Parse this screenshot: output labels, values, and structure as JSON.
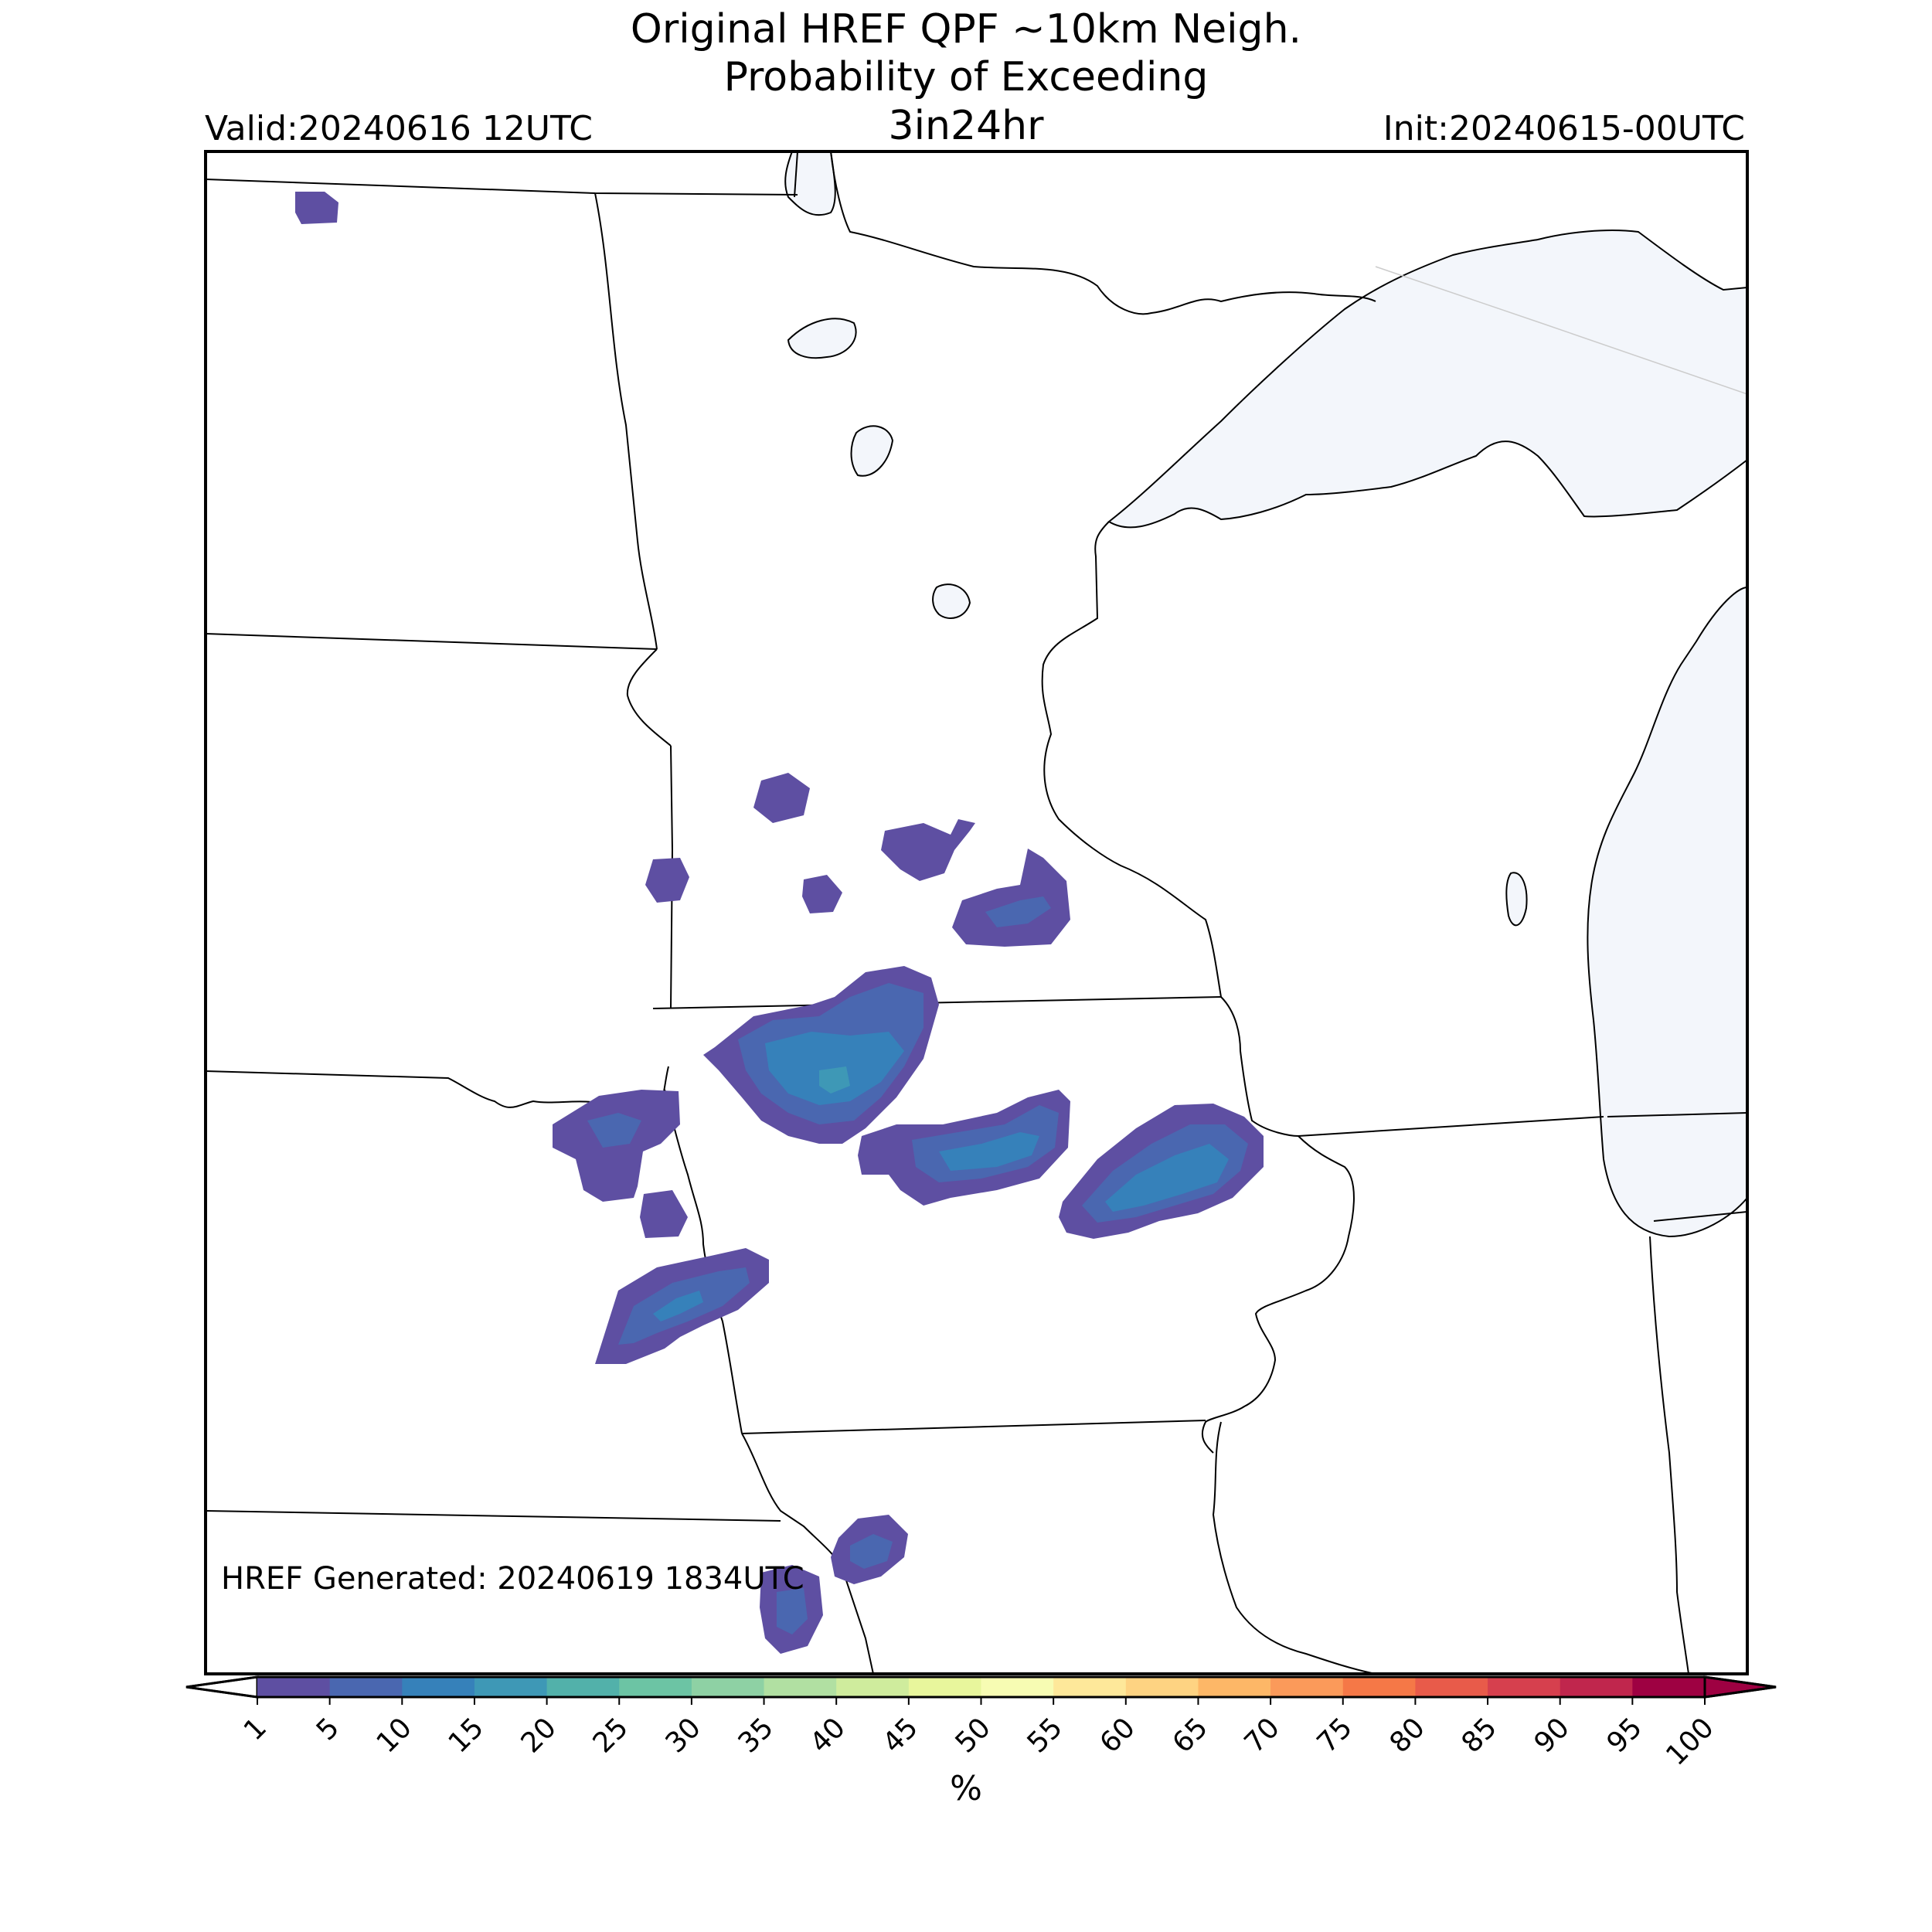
{
  "header": {
    "title_line1": "Original HREF QPF ~10km Neigh.",
    "title_line2": "Probability of Exceeding",
    "title_line3": "3in24hr",
    "valid": "Valid:20240616 12UTC",
    "init": "Init:20240615-00UTC"
  },
  "map": {
    "generated": "HREF Generated: 20240619 1834UTC",
    "lake_color": "#f3f6fb",
    "border_color": "#000000",
    "probability_blobs": [
      {
        "id": "nd-northwest",
        "level": 1
      },
      {
        "id": "mn-west",
        "level": 1
      },
      {
        "id": "mn-central-a",
        "level": 1
      },
      {
        "id": "mn-central-b",
        "level": 1
      },
      {
        "id": "mn-central-c",
        "level": 1
      },
      {
        "id": "mn-east",
        "level": 5
      },
      {
        "id": "ia-northwest",
        "level": 15
      },
      {
        "id": "sd-southeast",
        "level": 5
      },
      {
        "id": "ne-northeast",
        "level": 1
      },
      {
        "id": "ia-central",
        "level": 10
      },
      {
        "id": "ia-east",
        "level": 10
      },
      {
        "id": "ne-east",
        "level": 10
      },
      {
        "id": "mo-northwest",
        "level": 5
      },
      {
        "id": "ks-northeast",
        "level": 5
      }
    ]
  },
  "colorbar": {
    "units": "%",
    "levels": [
      "1",
      "5",
      "10",
      "15",
      "20",
      "25",
      "30",
      "35",
      "40",
      "45",
      "50",
      "55",
      "60",
      "65",
      "70",
      "75",
      "80",
      "85",
      "90",
      "95",
      "100"
    ],
    "colors": [
      "#5e4fa2",
      "#4a67b0",
      "#3681ba",
      "#3e98b6",
      "#52b1aa",
      "#6cc4a4",
      "#8ed1a4",
      "#b1e0a2",
      "#cfec9d",
      "#e8f69c",
      "#f7fcb3",
      "#fee89a",
      "#fed382",
      "#fdb767",
      "#fb9a5a",
      "#f57847",
      "#e85b4a",
      "#d6404e",
      "#c0264d",
      "#9e0142"
    ],
    "under_color": "#ffffff",
    "over_color": "#9e0142"
  }
}
